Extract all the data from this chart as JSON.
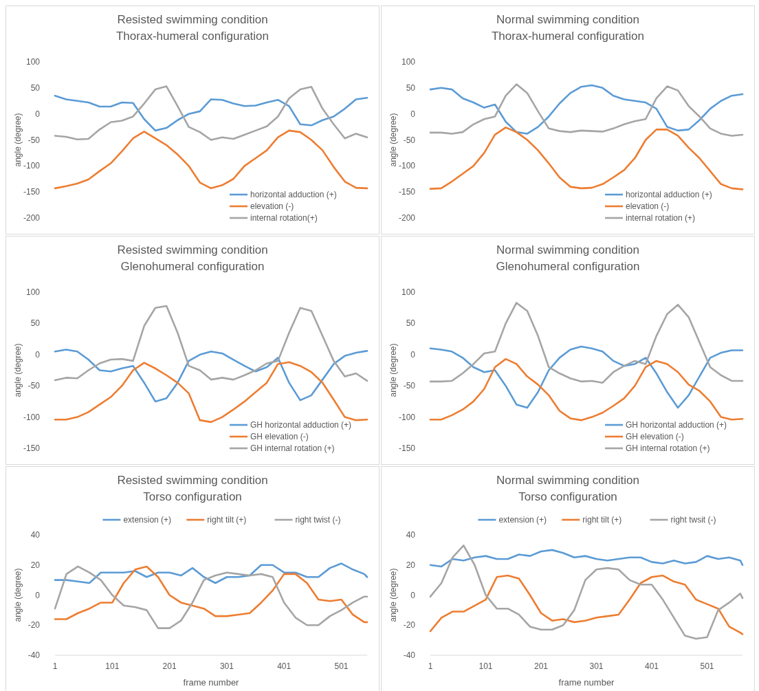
{
  "chart_data": [
    {
      "type": "line",
      "title": "Resisted swimming condition",
      "subtitle": "Thorax-humeral configuration",
      "ylabel": "angle (degree)",
      "categories": [
        null,
        null,
        null,
        null,
        null,
        null,
        null,
        null,
        null,
        null,
        null,
        null,
        null,
        null,
        null,
        null,
        null,
        null,
        null,
        null,
        null,
        null,
        null,
        null,
        null,
        null,
        null,
        null,
        null
      ],
      "ylim": [
        -200,
        100
      ],
      "yticks": [
        -200,
        -150,
        -100,
        -50,
        0,
        50,
        100
      ],
      "tick_labels": "y",
      "legend": "bottom right",
      "series": [
        {
          "name": "horizontal adduction (+)",
          "color": "#5b9bd5",
          "values": [
            35,
            28,
            25,
            22,
            14,
            14,
            22,
            21,
            -10,
            -32,
            -27,
            -12,
            0,
            5,
            28,
            27,
            20,
            15,
            16,
            22,
            27,
            15,
            -20,
            -22,
            -12,
            -5,
            10,
            28,
            31
          ]
        },
        {
          "name": "elevation (-)",
          "color": "#ed7d31",
          "values": [
            -143,
            -139,
            -134,
            -126,
            -110,
            -95,
            -72,
            -47,
            -34,
            -47,
            -60,
            -78,
            -100,
            -132,
            -143,
            -137,
            -125,
            -100,
            -85,
            -70,
            -45,
            -32,
            -35,
            -50,
            -70,
            -102,
            -130,
            -142,
            -143
          ]
        },
        {
          "name": "internal rotation(+)",
          "color": "#a5a5a5",
          "values": [
            -42,
            -44,
            -49,
            -48,
            -30,
            -16,
            -13,
            -5,
            20,
            47,
            53,
            15,
            -25,
            -35,
            -50,
            -45,
            -48,
            -40,
            -32,
            -24,
            -5,
            30,
            47,
            52,
            10,
            -20,
            -47,
            -38,
            -45
          ]
        }
      ]
    },
    {
      "type": "line",
      "title": "Normal swimming condition",
      "subtitle": "Thorax-humeral configuration",
      "ylabel": "angle (degree)",
      "categories": [
        null,
        null,
        null,
        null,
        null,
        null,
        null,
        null,
        null,
        null,
        null,
        null,
        null,
        null,
        null,
        null,
        null,
        null,
        null,
        null,
        null,
        null,
        null,
        null,
        null,
        null,
        null,
        null,
        null,
        null
      ],
      "ylim": [
        -200,
        100
      ],
      "yticks": [
        -200,
        -150,
        -100,
        -50,
        0,
        50,
        100
      ],
      "tick_labels": "y",
      "legend": "bottom right",
      "series": [
        {
          "name": "horizontal adduction (+)",
          "color": "#5b9bd5",
          "values": [
            47,
            50,
            47,
            30,
            22,
            12,
            18,
            -15,
            -35,
            -38,
            -25,
            -5,
            20,
            40,
            52,
            55,
            50,
            35,
            28,
            25,
            22,
            10,
            -25,
            -32,
            -30,
            -12,
            10,
            25,
            35,
            38
          ]
        },
        {
          "name": "elevation (-)",
          "color": "#ed7d31",
          "values": [
            -144,
            -143,
            -130,
            -115,
            -100,
            -75,
            -40,
            -26,
            -35,
            -50,
            -70,
            -95,
            -122,
            -140,
            -143,
            -142,
            -135,
            -122,
            -108,
            -85,
            -50,
            -30,
            -30,
            -42,
            -65,
            -85,
            -110,
            -135,
            -143,
            -145
          ]
        },
        {
          "name": "internal rotation (+)",
          "color": "#a5a5a5",
          "values": [
            -36,
            -36,
            -38,
            -35,
            -20,
            -10,
            -5,
            35,
            57,
            40,
            5,
            -28,
            -33,
            -35,
            -32,
            -33,
            -34,
            -28,
            -20,
            -14,
            -10,
            30,
            53,
            45,
            15,
            -5,
            -28,
            -38,
            -42,
            -40
          ]
        }
      ]
    },
    {
      "type": "line",
      "title": "Resisted swimming condition",
      "subtitle": "Glenohumeral configuration",
      "ylabel": "angle (degree)",
      "categories": [
        null,
        null,
        null,
        null,
        null,
        null,
        null,
        null,
        null,
        null,
        null,
        null,
        null,
        null,
        null,
        null,
        null,
        null,
        null,
        null,
        null,
        null,
        null,
        null,
        null,
        null,
        null,
        null,
        null
      ],
      "ylim": [
        -150,
        100
      ],
      "yticks": [
        -150,
        -100,
        -50,
        0,
        50,
        100
      ],
      "tick_labels": "y",
      "legend": "bottom right",
      "series": [
        {
          "name": "GH horizontal adduction (+)",
          "color": "#5b9bd5",
          "values": [
            5,
            8,
            5,
            -8,
            -25,
            -27,
            -22,
            -18,
            -45,
            -75,
            -70,
            -45,
            -10,
            0,
            5,
            2,
            -8,
            -18,
            -27,
            -20,
            -5,
            -45,
            -73,
            -65,
            -40,
            -15,
            -2,
            3,
            6
          ]
        },
        {
          "name": "GH elevation (-)",
          "color": "#ed7d31",
          "values": [
            -104,
            -104,
            -100,
            -92,
            -80,
            -68,
            -50,
            -25,
            -13,
            -22,
            -33,
            -45,
            -62,
            -105,
            -108,
            -100,
            -88,
            -75,
            -60,
            -45,
            -15,
            -12,
            -18,
            -28,
            -45,
            -72,
            -100,
            -105,
            -104
          ]
        },
        {
          "name": "GH internal rotation (+)",
          "color": "#a5a5a5",
          "values": [
            -41,
            -37,
            -38,
            -25,
            -14,
            -8,
            -7,
            -10,
            46,
            75,
            78,
            35,
            -18,
            -25,
            -40,
            -37,
            -40,
            -33,
            -25,
            -14,
            -10,
            35,
            75,
            70,
            30,
            -10,
            -35,
            -30,
            -42
          ]
        }
      ]
    },
    {
      "type": "line",
      "title": "Normal swimming condition",
      "subtitle": "Glenohumeral configuration",
      "ylabel": "angle (degree)",
      "categories": [
        null,
        null,
        null,
        null,
        null,
        null,
        null,
        null,
        null,
        null,
        null,
        null,
        null,
        null,
        null,
        null,
        null,
        null,
        null,
        null,
        null,
        null,
        null,
        null,
        null,
        null,
        null,
        null,
        null,
        null
      ],
      "ylim": [
        -150,
        100
      ],
      "yticks": [
        -150,
        -100,
        -50,
        0,
        50,
        100
      ],
      "tick_labels": "y",
      "legend": "bottom right",
      "series": [
        {
          "name": "GH horizontal adduction (+)",
          "color": "#5b9bd5",
          "values": [
            10,
            8,
            5,
            -5,
            -20,
            -28,
            -25,
            -50,
            -80,
            -85,
            -60,
            -25,
            -5,
            8,
            13,
            10,
            5,
            -10,
            -18,
            -15,
            -5,
            -30,
            -60,
            -85,
            -65,
            -35,
            -5,
            3,
            7,
            7
          ]
        },
        {
          "name": "GH elevation (-)",
          "color": "#ed7d31",
          "values": [
            -104,
            -104,
            -97,
            -88,
            -75,
            -55,
            -20,
            -7,
            -15,
            -35,
            -48,
            -65,
            -90,
            -102,
            -105,
            -100,
            -93,
            -82,
            -70,
            -50,
            -20,
            -10,
            -15,
            -28,
            -48,
            -58,
            -75,
            -100,
            -104,
            -103
          ]
        },
        {
          "name": "GH internal rotation (+)",
          "color": "#a5a5a5",
          "values": [
            -43,
            -43,
            -42,
            -30,
            -15,
            2,
            5,
            50,
            83,
            70,
            30,
            -20,
            -30,
            -38,
            -43,
            -42,
            -45,
            -28,
            -18,
            -10,
            -15,
            30,
            65,
            80,
            60,
            20,
            -20,
            -33,
            -42,
            -42
          ]
        }
      ]
    },
    {
      "type": "line",
      "title": "Resisted swimming condition",
      "subtitle": "Torso configuration",
      "ylabel": "angle (degree)",
      "xlabel": "frame number",
      "x": [
        1,
        21,
        41,
        61,
        81,
        101,
        121,
        141,
        161,
        181,
        201,
        221,
        241,
        261,
        281,
        301,
        321,
        341,
        361,
        381,
        401,
        421,
        441,
        461,
        481,
        501,
        521,
        541,
        546
      ],
      "xlim": [
        1,
        546
      ],
      "xticks": [
        1,
        101,
        201,
        301,
        401,
        501
      ],
      "ylim": [
        -40,
        40
      ],
      "yticks": [
        -40,
        -20,
        0,
        20,
        40
      ],
      "legend": "top",
      "series": [
        {
          "name": "extension (+)",
          "color": "#5b9bd5",
          "values": [
            10,
            10,
            9,
            8,
            15,
            15,
            15,
            16,
            12,
            15,
            15,
            13,
            18,
            12,
            8,
            12,
            12,
            13,
            20,
            20,
            15,
            15,
            12,
            12,
            18,
            21,
            17,
            14,
            12
          ]
        },
        {
          "name": "right tilt (+)",
          "color": "#ed7d31",
          "values": [
            -16,
            -16,
            -12,
            -9,
            -5,
            -5,
            8,
            17,
            19,
            12,
            0,
            -5,
            -7,
            -9,
            -14,
            -14,
            -13,
            -12,
            -5,
            3,
            14,
            14,
            8,
            -3,
            -4,
            -3,
            -13,
            -18,
            -18
          ]
        },
        {
          "name": "right twist (-)",
          "color": "#a5a5a5",
          "values": [
            -9,
            14,
            19,
            15,
            10,
            0,
            -7,
            -8,
            -10,
            -22,
            -22,
            -17,
            -5,
            10,
            13,
            15,
            14,
            13,
            14,
            12,
            -5,
            -15,
            -20,
            -20,
            -14,
            -10,
            -5,
            -1,
            -1
          ]
        }
      ]
    },
    {
      "type": "line",
      "title": "Normal swimming condition",
      "subtitle": "Torso configuration",
      "ylabel": "angle (degree)",
      "xlabel": "frame number",
      "x": [
        1,
        21,
        41,
        61,
        81,
        101,
        121,
        141,
        161,
        181,
        201,
        221,
        241,
        261,
        281,
        301,
        321,
        341,
        361,
        381,
        401,
        421,
        441,
        461,
        481,
        501,
        521,
        541,
        561,
        565
      ],
      "xlim": [
        1,
        565
      ],
      "xticks": [
        1,
        101,
        201,
        301,
        401,
        501
      ],
      "ylim": [
        -40,
        40
      ],
      "yticks": [
        -40,
        -20,
        0,
        20,
        40
      ],
      "legend": "top",
      "series": [
        {
          "name": "extension (+)",
          "color": "#5b9bd5",
          "values": [
            20,
            19,
            24,
            23,
            25,
            26,
            24,
            24,
            27,
            26,
            29,
            30,
            28,
            25,
            26,
            24,
            23,
            24,
            25,
            25,
            22,
            21,
            23,
            21,
            22,
            26,
            24,
            25,
            23,
            20
          ]
        },
        {
          "name": "right tilt (+)",
          "color": "#ed7d31",
          "values": [
            -24,
            -15,
            -11,
            -11,
            -7,
            -3,
            12,
            13,
            11,
            0,
            -12,
            -17,
            -16,
            -18,
            -17,
            -15,
            -14,
            -13,
            -3,
            8,
            12,
            13,
            9,
            7,
            -3,
            -6,
            -9,
            -21,
            -25,
            -26
          ]
        },
        {
          "name": "right twsit (-)",
          "color": "#a5a5a5",
          "values": [
            -1,
            8,
            25,
            33,
            20,
            0,
            -9,
            -9,
            -13,
            -21,
            -23,
            -23,
            -20,
            -10,
            10,
            17,
            18,
            17,
            10,
            7,
            7,
            -3,
            -15,
            -27,
            -29,
            -28,
            -10,
            -5,
            1,
            -2
          ]
        }
      ]
    }
  ]
}
